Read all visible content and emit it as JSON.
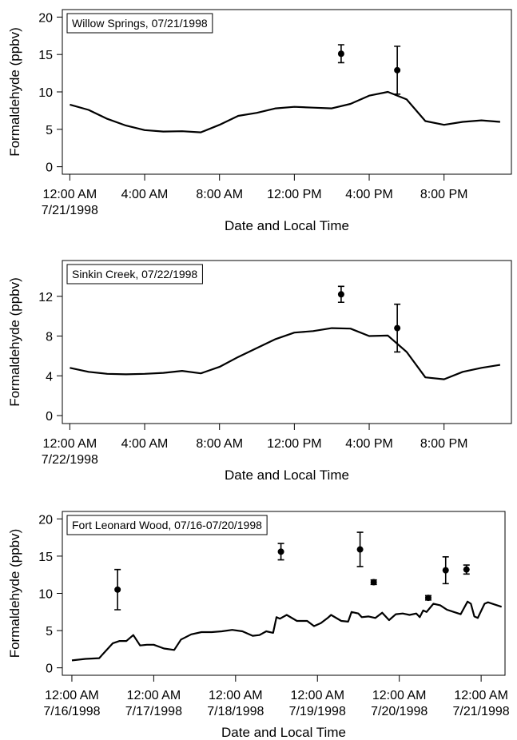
{
  "chart_data": [
    {
      "type": "line",
      "title": "Willow Springs, 07/21/1998",
      "x_label": "Date and Local Time",
      "y_label": "Formaldehyde (ppbv)",
      "xlim": [
        -0.4,
        23.6
      ],
      "ylim": [
        -1,
        21
      ],
      "xticks": [
        {
          "value": 0,
          "label": "12:00 AM\n7/21/1998"
        },
        {
          "value": 4,
          "label": "4:00 AM"
        },
        {
          "value": 8,
          "label": "8:00 AM"
        },
        {
          "value": 12,
          "label": "12:00 PM"
        },
        {
          "value": 16,
          "label": "4:00 PM"
        },
        {
          "value": 20,
          "label": "8:00 PM"
        }
      ],
      "yticks": [
        0,
        5,
        10,
        15,
        20
      ],
      "series": [
        {
          "style": "line",
          "color": "#000000",
          "x": [
            0,
            1,
            2,
            3,
            4,
            5,
            6,
            7,
            8,
            9,
            10,
            11,
            12,
            13,
            14,
            15,
            16,
            17,
            18,
            19,
            20,
            21,
            22,
            23
          ],
          "values": [
            8.3,
            7.6,
            6.4,
            5.5,
            4.9,
            4.7,
            4.75,
            4.6,
            5.6,
            6.8,
            7.2,
            7.8,
            8.0,
            7.9,
            7.8,
            8.4,
            9.5,
            10.0,
            9.0,
            6.1,
            5.6,
            6.0,
            6.2,
            6.0
          ]
        },
        {
          "style": "points",
          "color": "#000000",
          "x": [
            14.5,
            17.5
          ],
          "values": [
            15.1,
            12.9
          ],
          "errors": [
            1.2,
            3.2
          ]
        }
      ]
    },
    {
      "type": "line",
      "title": "Sinkin Creek, 07/22/1998",
      "x_label": "Date and Local Time",
      "y_label": "Formaldehyde (ppbv)",
      "xlim": [
        -0.4,
        23.6
      ],
      "ylim": [
        -0.8,
        15.6
      ],
      "xticks": [
        {
          "value": 0,
          "label": "12:00 AM\n7/22/1998"
        },
        {
          "value": 4,
          "label": "4:00 AM"
        },
        {
          "value": 8,
          "label": "8:00 AM"
        },
        {
          "value": 12,
          "label": "12:00 PM"
        },
        {
          "value": 16,
          "label": "4:00 PM"
        },
        {
          "value": 20,
          "label": "8:00 PM"
        }
      ],
      "yticks": [
        0,
        4,
        8,
        12
      ],
      "series": [
        {
          "style": "line",
          "color": "#000000",
          "x": [
            0,
            1,
            2,
            3,
            4,
            5,
            6,
            7,
            8,
            9,
            10,
            11,
            12,
            13,
            14,
            15,
            16,
            17,
            18,
            19,
            20,
            21,
            22,
            23
          ],
          "values": [
            4.8,
            4.4,
            4.2,
            4.15,
            4.2,
            4.3,
            4.5,
            4.25,
            4.9,
            5.9,
            6.8,
            7.7,
            8.35,
            8.5,
            8.8,
            8.75,
            8.0,
            8.05,
            6.4,
            3.85,
            3.65,
            4.4,
            4.8,
            5.1
          ]
        },
        {
          "style": "points",
          "color": "#000000",
          "x": [
            14.5,
            17.5
          ],
          "values": [
            12.2,
            8.8
          ],
          "errors": [
            0.8,
            2.4
          ]
        }
      ]
    },
    {
      "type": "line",
      "title": "Fort Leonard Wood, 07/16-07/20/1998",
      "x_label": "Date and Local Time",
      "y_label": "Formaldehyde (ppbv)",
      "xlim": [
        -2.8,
        127
      ],
      "ylim": [
        -1,
        21
      ],
      "xticks": [
        {
          "value": 0,
          "label": "12:00 AM\n7/16/1998"
        },
        {
          "value": 24,
          "label": "12:00 AM\n7/17/1998"
        },
        {
          "value": 48,
          "label": "12:00 AM\n7/18/1998"
        },
        {
          "value": 72,
          "label": "12:00 AM\n7/19/1998"
        },
        {
          "value": 96,
          "label": "12:00 AM\n7/20/1998"
        },
        {
          "value": 120,
          "label": "12:00 AM\n7/21/1998"
        }
      ],
      "yticks": [
        0,
        5,
        10,
        15,
        20
      ],
      "series": [
        {
          "style": "line",
          "color": "#000000",
          "x": [
            0,
            4,
            8,
            12,
            14,
            16,
            18,
            20,
            22,
            24,
            27,
            30,
            32,
            35,
            38,
            41,
            44,
            47,
            50,
            53,
            55,
            57,
            59,
            60,
            61,
            63,
            66,
            69,
            71,
            73,
            75,
            76,
            79,
            81,
            82,
            84,
            85,
            87,
            89,
            91,
            93,
            95,
            97,
            99,
            101,
            102,
            103,
            104,
            106,
            108,
            110,
            112,
            114,
            116,
            117,
            118,
            119,
            121,
            122,
            126
          ],
          "values": [
            1.0,
            1.2,
            1.3,
            3.3,
            3.6,
            3.6,
            4.4,
            3.0,
            3.1,
            3.1,
            2.6,
            2.4,
            3.8,
            4.5,
            4.8,
            4.8,
            4.9,
            5.1,
            4.9,
            4.3,
            4.4,
            4.9,
            4.7,
            6.8,
            6.6,
            7.1,
            6.3,
            6.3,
            5.6,
            6.0,
            6.7,
            7.1,
            6.3,
            6.2,
            7.5,
            7.3,
            6.8,
            6.9,
            6.7,
            7.4,
            6.4,
            7.2,
            7.3,
            7.1,
            7.3,
            6.8,
            7.7,
            7.5,
            8.6,
            8.4,
            7.8,
            7.5,
            7.2,
            8.9,
            8.6,
            6.9,
            6.7,
            8.6,
            8.8,
            8.2
          ]
        },
        {
          "style": "points",
          "color": "#000000",
          "x": [
            13.4,
            61.3,
            84.5,
            88.5,
            104.5,
            109.6,
            115.7
          ],
          "values": [
            10.5,
            15.6,
            15.9,
            11.5,
            9.4,
            13.1,
            13.2
          ],
          "errors": [
            2.7,
            1.1,
            2.3,
            0.3,
            0.3,
            1.8,
            0.6
          ]
        }
      ]
    }
  ]
}
